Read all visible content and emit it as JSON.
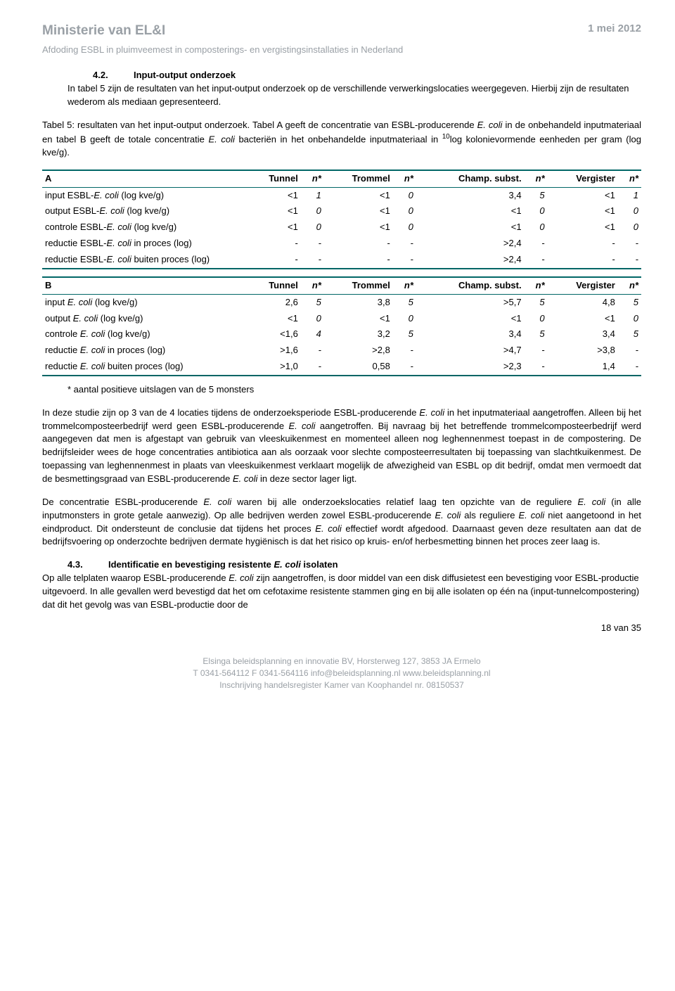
{
  "header": {
    "title": "Ministerie van EL&I",
    "date": "1 mei 2012",
    "subtitle": "Afdoding ESBL in pluimveemest in composterings- en vergistingsinstallaties in Nederland"
  },
  "s42": {
    "num": "4.2.",
    "title": "Input-output onderzoek",
    "p1": "In tabel 5 zijn de resultaten van het input-output onderzoek op de verschillende verwerkingslocaties weergegeven. Hierbij zijn de resultaten wederom als mediaan gepresenteerd."
  },
  "caption5_a": "Tabel 5: resultaten van het input-output onderzoek. Tabel A geeft de concentratie van ESBL-producerende ",
  "caption5_b": "E. coli",
  "caption5_c": " in de onbehandeld inputmateriaal en tabel B geeft de totale concentratie ",
  "caption5_d": "E. coli",
  "caption5_e": " bacteriën in het onbehandelde inputmateriaal in ",
  "caption5_sup": "10",
  "caption5_f": "log kolonievormende eenheden per gram (log kve/g).",
  "table_cols": {
    "tunnel": "Tunnel",
    "trommel": "Trommel",
    "champ": "Champ. subst.",
    "vergister": "Vergister",
    "nstar": "n*"
  },
  "tableA": {
    "label": "A",
    "rows": [
      {
        "label_a": "input ESBL-",
        "label_i": "E. coli",
        "label_b": "  (log kve/g)",
        "tunnel": "<1",
        "n1": "1",
        "trommel": "<1",
        "n2": "0",
        "champ": "3,4",
        "n3": "5",
        "verg": "<1",
        "n4": "1"
      },
      {
        "label_a": "output ESBL-",
        "label_i": "E. coli",
        "label_b": " (log kve/g)",
        "tunnel": "<1",
        "n1": "0",
        "trommel": "<1",
        "n2": "0",
        "champ": "<1",
        "n3": "0",
        "verg": "<1",
        "n4": "0"
      },
      {
        "label_a": "controle ESBL-",
        "label_i": "E. coli",
        "label_b": "  (log kve/g)",
        "tunnel": "<1",
        "n1": "0",
        "trommel": "<1",
        "n2": "0",
        "champ": "<1",
        "n3": "0",
        "verg": "<1",
        "n4": "0"
      },
      {
        "label_a": "reductie ESBL-",
        "label_i": "E. coli",
        "label_b": " in proces (log)",
        "tunnel": "-",
        "n1": "-",
        "trommel": "-",
        "n2": "-",
        "champ": ">2,4",
        "n3": "-",
        "verg": "-",
        "n4": "-"
      },
      {
        "label_a": "reductie ESBL-",
        "label_i": "E. coli",
        "label_b": " buiten proces (log)",
        "tunnel": "-",
        "n1": "-",
        "trommel": "-",
        "n2": "-",
        "champ": ">2,4",
        "n3": "-",
        "verg": "-",
        "n4": "-"
      }
    ]
  },
  "tableB": {
    "label": "B",
    "rows": [
      {
        "label_a": "input ",
        "label_i": "E. coli",
        "label_b": "  (log kve/g)",
        "tunnel": "2,6",
        "n1": "5",
        "trommel": "3,8",
        "n2": "5",
        "champ": ">5,7",
        "n3": "5",
        "verg": "4,8",
        "n4": "5"
      },
      {
        "label_a": "output ",
        "label_i": "E. coli",
        "label_b": " (log kve/g)",
        "tunnel": "<1",
        "n1": "0",
        "trommel": "<1",
        "n2": "0",
        "champ": "<1",
        "n3": "0",
        "verg": "<1",
        "n4": "0"
      },
      {
        "label_a": "controle ",
        "label_i": "E. coli",
        "label_b": "  (log kve/g)",
        "tunnel": "<1,6",
        "n1": "4",
        "trommel": "3,2",
        "n2": "5",
        "champ": "3,4",
        "n3": "5",
        "verg": "3,4",
        "n4": "5"
      },
      {
        "label_a": "reductie ",
        "label_i": "E. coli",
        "label_b": " in proces (log)",
        "tunnel": ">1,6",
        "n1": "-",
        "trommel": ">2,8",
        "n2": "-",
        "champ": ">4,7",
        "n3": "-",
        "verg": ">3,8",
        "n4": "-"
      },
      {
        "label_a": "reductie ",
        "label_i": "E. coli",
        "label_b": " buiten proces (log)",
        "tunnel": ">1,0",
        "n1": "-",
        "trommel": "0,58",
        "n2": "-",
        "champ": ">2,3",
        "n3": "-",
        "verg": "1,4",
        "n4": "-"
      }
    ]
  },
  "footnote": "*   aantal positieve uitslagen van de 5 monsters",
  "para_after_tables_segments": [
    {
      "t": "In deze studie zijn op 3 van de 4 locaties tijdens de onderzoeksperiode ESBL-producerende ",
      "i": false
    },
    {
      "t": "E. coli",
      "i": true
    },
    {
      "t": " in het inputmateriaal aangetroffen. Alleen bij het trommelcomposteerbedrijf werd geen ESBL-producerende ",
      "i": false
    },
    {
      "t": "E. coli",
      "i": true
    },
    {
      "t": " aangetroffen. Bij navraag bij het betreffende trommelcomposteerbedrijf werd aangegeven dat men is afgestapt van gebruik van vleeskuikenmest en momenteel alleen nog leghennenmest toepast in de compostering. De bedrijfsleider wees de hoge concentraties antibiotica aan als oorzaak voor slechte composteerresultaten bij toepassing van slachtkuikenmest. De toepassing van leghennenmest in plaats van vleeskuikenmest verklaart mogelijk de afwezigheid van ESBL op dit bedrijf, omdat men vermoedt dat de besmettingsgraad van ESBL-producerende ",
      "i": false
    },
    {
      "t": "E. coli",
      "i": true
    },
    {
      "t": " in deze sector lager ligt.",
      "i": false
    }
  ],
  "para_conc_segments": [
    {
      "t": "De concentratie ESBL-producerende ",
      "i": false
    },
    {
      "t": "E. coli",
      "i": true
    },
    {
      "t": " waren bij alle  onderzoekslocaties relatief laag ten opzichte van de reguliere ",
      "i": false
    },
    {
      "t": "E. coli",
      "i": true
    },
    {
      "t": " (in alle inputmonsters in grote getale aanwezig). Op alle bedrijven werden zowel ESBL-producerende ",
      "i": false
    },
    {
      "t": "E. coli",
      "i": true
    },
    {
      "t": " als reguliere ",
      "i": false
    },
    {
      "t": "E. coli",
      "i": true
    },
    {
      "t": " niet aangetoond in het eindproduct. Dit ondersteunt de conclusie dat tijdens het proces ",
      "i": false
    },
    {
      "t": "E. coli",
      "i": true
    },
    {
      "t": " effectief wordt afgedood. Daarnaast geven deze resultaten aan dat de bedrijfsvoering op onderzochte bedrijven dermate hygiënisch is dat het risico op kruis- en/of herbesmetting binnen het proces zeer laag is.",
      "i": false
    }
  ],
  "s43": {
    "num": "4.3.",
    "title_a": "Identificatie en bevestiging  resistente ",
    "title_i": "E. coli",
    "title_b": " isolaten"
  },
  "s43_p_segments": [
    {
      "t": "Op alle telplaten waarop ESBL-producerende ",
      "i": false
    },
    {
      "t": "E. coli",
      "i": true
    },
    {
      "t": " zijn aangetroffen, is door middel van een disk diffusietest een bevestiging voor ESBL-productie uitgevoerd. In alle gevallen werd bevestigd dat het om cefotaxime resistente stammen ging en bij alle isolaten op één na (input-tunnelcompostering) dat dit het gevolg was van ESBL-productie door de",
      "i": false
    }
  ],
  "page_num": "18 van 35",
  "footer": {
    "l1": "Elsinga beleidsplanning en innovatie BV, Horsterweg 127, 3853 JA Ermelo",
    "l2": "T 0341-564112 F 0341-564116  info@beleidsplanning.nl  www.beleidsplanning.nl",
    "l3": "Inschrijving handelsregister Kamer van Koophandel nr. 08150537"
  }
}
